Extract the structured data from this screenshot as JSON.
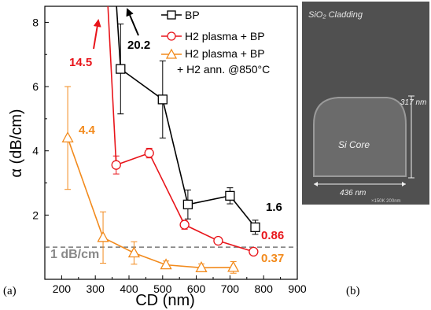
{
  "chart_data": {
    "type": "line",
    "xlabel": "CD (nm)",
    "ylabel": "α (dB/cm)",
    "xlim": [
      150,
      900
    ],
    "ylim": [
      0,
      8.5
    ],
    "x_ticks": [
      "200",
      "300",
      "400",
      "500",
      "600",
      "700",
      "800",
      "900"
    ],
    "y_ticks": [
      "2",
      "4",
      "6",
      "8"
    ],
    "legend_position": "top-right",
    "reference_line": {
      "y": 1.0,
      "label": "1 dB/cm",
      "style": "dashed"
    },
    "series": [
      {
        "name": "BP",
        "color": "#000000",
        "marker": "square",
        "x": [
          375,
          500,
          575,
          700,
          775
        ],
        "y": [
          6.55,
          5.6,
          2.33,
          2.6,
          1.62
        ],
        "err": [
          1.4,
          1.2,
          0.45,
          0.25,
          0.22
        ],
        "offscale": {
          "x": 360,
          "value_label": "20.2"
        }
      },
      {
        "name": "H2 plasma + BP",
        "color": "#e8141a",
        "marker": "circle",
        "x": [
          362,
          460,
          565,
          665,
          770
        ],
        "y": [
          3.56,
          3.93,
          1.7,
          1.2,
          0.86
        ],
        "err": [
          0.28,
          0.15,
          0.14,
          0.09,
          0.09
        ],
        "offscale": {
          "x": 335,
          "value_label": "14.5"
        }
      },
      {
        "name": "H2 plasma + BP + H2 ann. @850°C",
        "color": "#f28a1c",
        "marker": "triangle",
        "x": [
          218,
          323,
          415,
          510,
          615,
          710
        ],
        "y": [
          4.4,
          1.3,
          0.82,
          0.45,
          0.36,
          0.37
        ],
        "err": [
          1.6,
          0.8,
          0.35,
          0.12,
          0.12,
          0.18
        ]
      }
    ],
    "value_labels": [
      {
        "text": "20.2",
        "color": "#000000"
      },
      {
        "text": "14.5",
        "color": "#e8141a"
      },
      {
        "text": "4.4",
        "color": "#f28a1c"
      },
      {
        "text": "1.6",
        "color": "#000000"
      },
      {
        "text": "0.86",
        "color": "#e8141a"
      },
      {
        "text": "0.37",
        "color": "#f28a1c"
      }
    ],
    "legend_entries": [
      "BP",
      "H2 plasma + BP",
      "H2 plasma + BP",
      "+ H2 ann. @850°C"
    ]
  },
  "panel_labels": {
    "a": "(a)",
    "b": "(b)"
  },
  "sem_image": {
    "cladding_label": "SiO₂ Cladding",
    "core_label": "Si Core",
    "height_label": "317 nm",
    "width_label": "436 nm",
    "scale_text": "×150K 200nm"
  }
}
